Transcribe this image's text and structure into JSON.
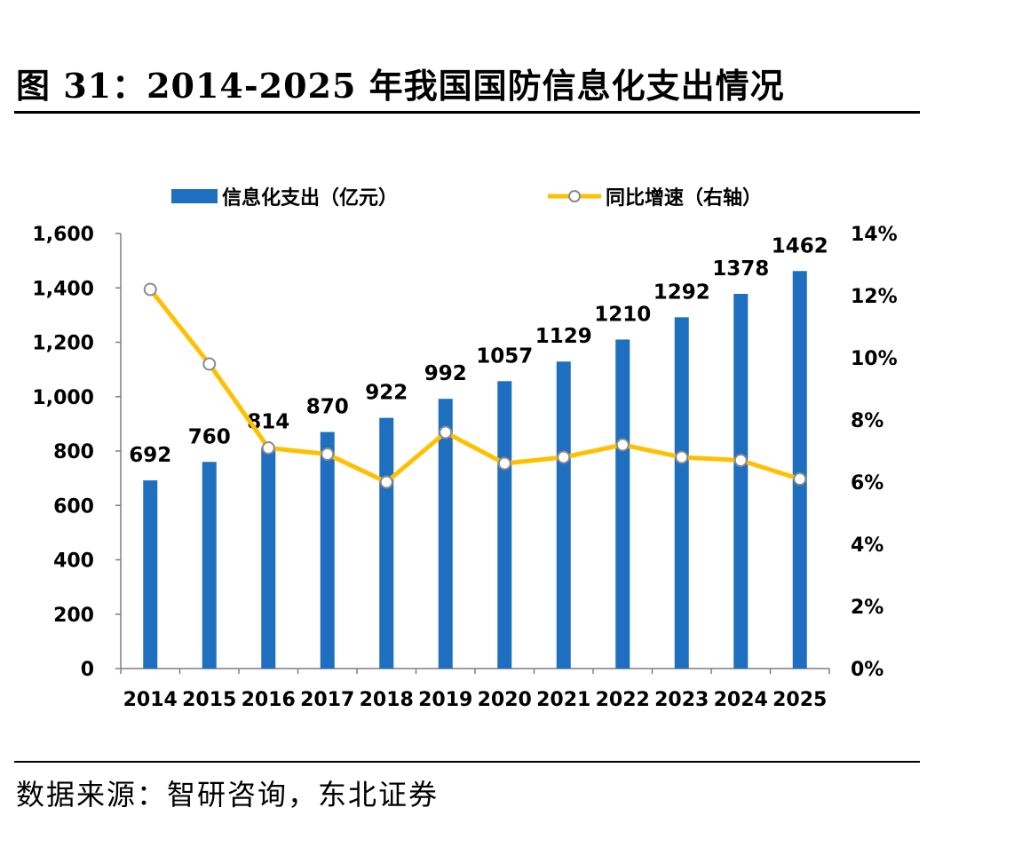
{
  "header": {
    "title": "图 31：2014-2025 年我国国防信息化支出情况"
  },
  "footer": {
    "source": "数据来源：智研咨询，东北证券"
  },
  "colors": {
    "bar": "#1F6FC0",
    "line": "#FFC000",
    "marker_fill": "#FFFFFF",
    "marker_stroke": "#8A8A8A"
  },
  "chart_data": {
    "type": "bar",
    "categories": [
      "2014",
      "2015",
      "2016",
      "2017",
      "2018",
      "2019",
      "2020",
      "2021",
      "2022",
      "2023",
      "2024",
      "2025"
    ],
    "series": [
      {
        "name": "信息化支出（亿元）",
        "type": "bar",
        "axis": "left",
        "values": [
          692,
          760,
          814,
          870,
          922,
          992,
          1057,
          1129,
          1210,
          1292,
          1378,
          1462
        ]
      },
      {
        "name": "同比增速（右轴）",
        "type": "line",
        "axis": "right",
        "values": [
          12.2,
          9.8,
          7.1,
          6.9,
          6.0,
          7.6,
          6.6,
          6.8,
          7.2,
          6.8,
          6.7,
          6.1
        ]
      }
    ],
    "data_labels": [
      "692",
      "760",
      "814",
      "870",
      "922",
      "992",
      "1057",
      "1129",
      "1210",
      "1292",
      "1378",
      "1462"
    ],
    "y_left": {
      "min": 0,
      "max": 1600,
      "ticks": [
        "0",
        "200",
        "400",
        "600",
        "800",
        "1,000",
        "1,200",
        "1,400",
        "1,600"
      ]
    },
    "y_right": {
      "min": 0,
      "max": 14,
      "ticks": [
        "0%",
        "2%",
        "4%",
        "6%",
        "8%",
        "10%",
        "12%",
        "14%"
      ]
    },
    "legend_position": "top",
    "grid": false
  }
}
